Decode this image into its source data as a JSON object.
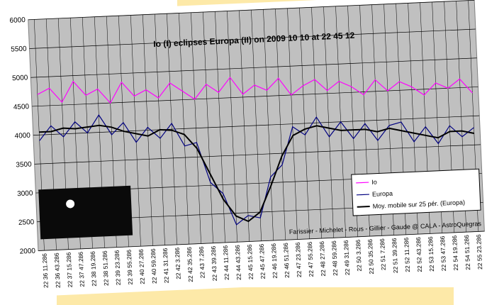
{
  "chart_data": {
    "type": "line",
    "title": "Io (I) eclipses Europa (II) on 2009 10 10 at 22 45 12",
    "annotation": "Farissier - Michelet - Rous - Gillier - Gaude @ CALA - AstroQuegras",
    "categories": [
      "22 36 11.286",
      "22 36 43.286",
      "22 37 15.286",
      "22 37 47.286",
      "22 38 19.286",
      "22 38 51.286",
      "22 39 23.286",
      "22 39 55.286",
      "22 40 27.286",
      "22 40 59.286",
      "22 41 31.286",
      "22 42 3.286",
      "22 42 35.286",
      "22 43 7.286",
      "22 43 39.286",
      "22 44 11.286",
      "22 44 43.286",
      "22 45 15.286",
      "22 45 47.286",
      "22 46 19.286",
      "22 46 51.286",
      "22 47 23.286",
      "22 47 55.286",
      "22 48 27.286",
      "22 48 59.286",
      "22 49 31.286",
      "22 50 3.286",
      "22 50 35.286",
      "22 51 7.286",
      "22 51 39.286",
      "22 52 11.286",
      "22 52 43.286",
      "22 53 15.286",
      "22 53 47.286",
      "22 54 19.286",
      "22 54 51.286",
      "22 55 23.286"
    ],
    "series": [
      {
        "name": "Io",
        "color": "#ff00ff",
        "values": [
          4700,
          4800,
          4550,
          4900,
          4650,
          4750,
          4500,
          4850,
          4600,
          4700,
          4550,
          4800,
          4650,
          4500,
          4750,
          4600,
          4850,
          4550,
          4700,
          4600,
          4800,
          4500,
          4650,
          4750,
          4550,
          4700,
          4600,
          4450,
          4700,
          4500,
          4650,
          4550,
          4400,
          4600,
          4500,
          4650,
          4400
        ]
      },
      {
        "name": "Europa",
        "color": "#000080",
        "values": [
          3900,
          4150,
          3950,
          4200,
          4000,
          4300,
          3950,
          4150,
          3800,
          4050,
          3850,
          4100,
          3700,
          3750,
          3050,
          2850,
          2300,
          2450,
          2400,
          3100,
          3300,
          3950,
          3800,
          4100,
          3750,
          4000,
          3700,
          3950,
          3650,
          3900,
          3950,
          3600,
          3850,
          3550,
          3850,
          3650,
          3800
        ]
      },
      {
        "name": "Moy. mobile sur 25 pér. (Europa)",
        "color": "#000000",
        "values": [
          4050,
          4050,
          4100,
          4080,
          4100,
          4120,
          4080,
          4000,
          3950,
          3900,
          4000,
          3980,
          3900,
          3650,
          3200,
          2750,
          2450,
          2350,
          2500,
          2950,
          3450,
          3800,
          3900,
          3950,
          3900,
          3850,
          3850,
          3850,
          3800,
          3850,
          3800,
          3750,
          3700,
          3650,
          3750,
          3750,
          3700
        ]
      }
    ],
    "ylim": [
      2000,
      6000
    ],
    "yticks": [
      2000,
      2500,
      3000,
      3500,
      4000,
      4500,
      5000,
      5500,
      6000
    ],
    "grid": true,
    "legend_position": "lower right"
  }
}
